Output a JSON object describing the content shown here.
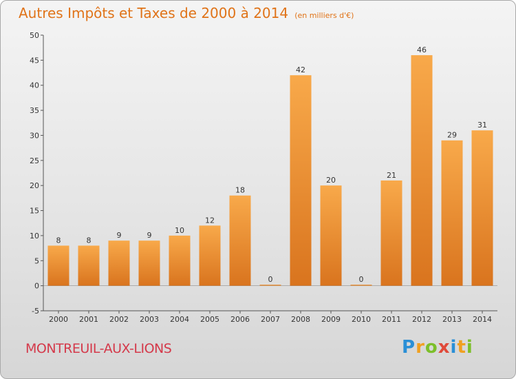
{
  "title": "Autres Impôts et Taxes de 2000 à 2014",
  "unit_note": "(en milliers d'€)",
  "commune": "MONTREUIL-AUX-LIONS",
  "logo": {
    "letters": [
      "P",
      "r",
      "o",
      "x",
      "i",
      "t",
      "i"
    ],
    "colors": [
      "#2a8fd6",
      "#f0a020",
      "#7cbf2a",
      "#e04a3a",
      "#2a8fd6",
      "#f0a020",
      "#7cbf2a"
    ]
  },
  "colors": {
    "bar": "#f29a3c",
    "title": "#e07318",
    "commune": "#d4394a"
  },
  "chart_data": {
    "type": "bar",
    "title": "Autres Impôts et Taxes de 2000 à 2014",
    "subtitle": "(en milliers d'€)",
    "categories": [
      "2000",
      "2001",
      "2002",
      "2003",
      "2004",
      "2005",
      "2006",
      "2007",
      "2008",
      "2009",
      "2010",
      "2011",
      "2012",
      "2013",
      "2014"
    ],
    "values": [
      8,
      8,
      9,
      9,
      10,
      12,
      18,
      0,
      42,
      20,
      0,
      21,
      46,
      29,
      31
    ],
    "ylim": [
      -5,
      50
    ],
    "yticks": [
      -5,
      0,
      5,
      10,
      15,
      20,
      25,
      30,
      35,
      40,
      45,
      50
    ],
    "grid": false
  }
}
